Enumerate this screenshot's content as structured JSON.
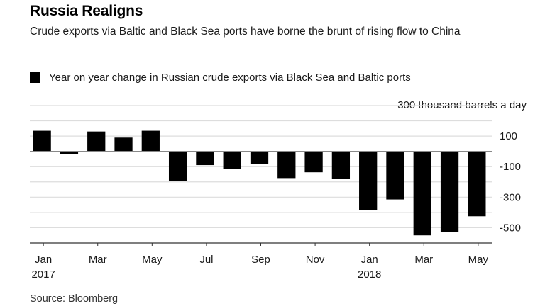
{
  "chart_data": {
    "type": "bar",
    "title": "Russia Realigns",
    "subtitle": "Crude exports via Baltic and Black Sea ports have borne the brunt of rising flow to China",
    "legend": [
      {
        "name": "Year on year change in Russian crude exports via Black Sea and Baltic ports",
        "color": "#000000"
      }
    ],
    "legend_position": "top-left",
    "units_label": "300 thousand barrels a day",
    "categories": [
      "Jan 2017",
      "Feb 2017",
      "Mar 2017",
      "Apr 2017",
      "May 2017",
      "Jun 2017",
      "Jul 2017",
      "Aug 2017",
      "Sep 2017",
      "Oct 2017",
      "Nov 2017",
      "Dec 2017",
      "Jan 2018",
      "Feb 2018",
      "Mar 2018",
      "Apr 2018",
      "May 2018"
    ],
    "series": [
      {
        "name": "Year on year change in Russian crude exports via Black Sea and Baltic ports",
        "values": [
          135,
          -20,
          130,
          90,
          135,
          -195,
          -90,
          -115,
          -85,
          -175,
          -137,
          -180,
          -385,
          -315,
          -550,
          -530,
          -425
        ]
      }
    ],
    "ylim": [
      -600,
      300
    ],
    "gridlines": [
      300,
      200,
      100,
      0,
      -100,
      -200,
      -300,
      -400,
      -500
    ],
    "ytick_labels": [
      {
        "value": 100,
        "label": "100"
      },
      {
        "value": -100,
        "label": "-100"
      },
      {
        "value": -300,
        "label": "-300"
      },
      {
        "value": -500,
        "label": "-500"
      }
    ],
    "xtick_labels": [
      {
        "index": 0,
        "label": "Jan",
        "sublabel": "2017"
      },
      {
        "index": 2,
        "label": "Mar",
        "sublabel": ""
      },
      {
        "index": 4,
        "label": "May",
        "sublabel": ""
      },
      {
        "index": 6,
        "label": "Jul",
        "sublabel": ""
      },
      {
        "index": 8,
        "label": "Sep",
        "sublabel": ""
      },
      {
        "index": 10,
        "label": "Nov",
        "sublabel": ""
      },
      {
        "index": 12,
        "label": "Jan",
        "sublabel": "2018"
      },
      {
        "index": 14,
        "label": "Mar",
        "sublabel": ""
      },
      {
        "index": 16,
        "label": "May",
        "sublabel": ""
      }
    ],
    "xlabel": "",
    "ylabel": "",
    "grid": true,
    "source": "Source: Bloomberg",
    "colors": {
      "bar": "#000000",
      "grid": "#dddddd",
      "zero": "#888888",
      "axis": "#333333"
    }
  }
}
